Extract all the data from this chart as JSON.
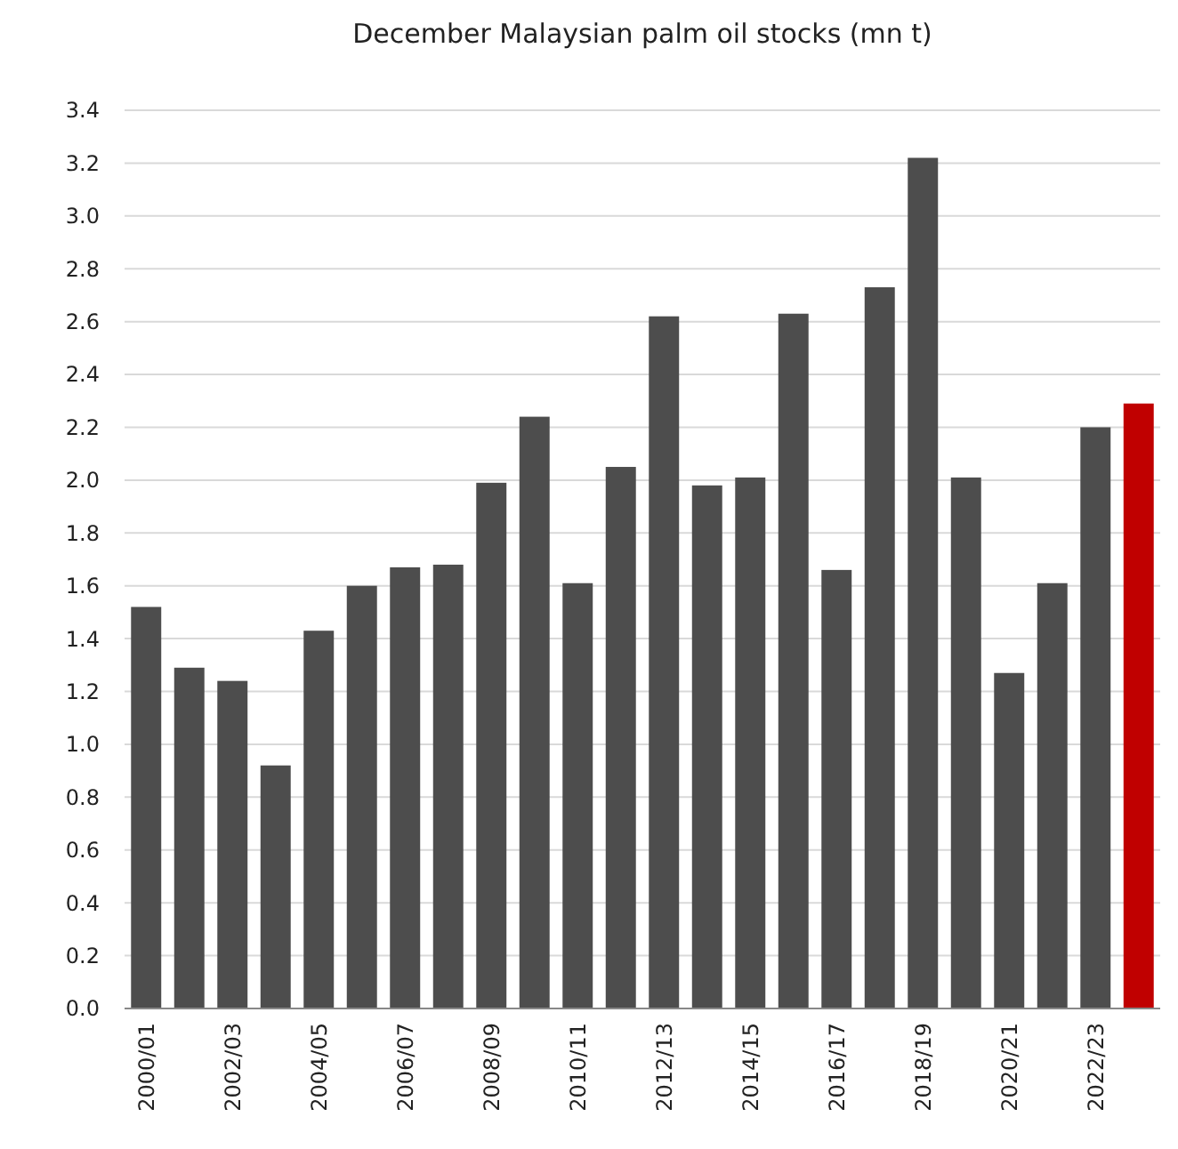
{
  "chart_data": {
    "type": "bar",
    "title": "December Malaysian palm oil stocks (mn t)",
    "categories": [
      "2000/01",
      null,
      "2002/03",
      null,
      "2004/05",
      null,
      "2006/07",
      null,
      "2008/09",
      null,
      "2010/11",
      null,
      "2012/13",
      null,
      "2014/15",
      null,
      "2016/17",
      null,
      "2018/19",
      null,
      "2020/21",
      null,
      "2022/23",
      null
    ],
    "values": [
      1.52,
      1.29,
      1.24,
      0.92,
      1.43,
      1.6,
      1.67,
      1.68,
      1.99,
      2.24,
      1.61,
      2.05,
      2.62,
      1.98,
      2.01,
      2.63,
      1.66,
      2.73,
      3.22,
      2.01,
      1.27,
      1.61,
      2.2,
      2.29
    ],
    "colors": [
      "#4d4d4d",
      "#4d4d4d",
      "#4d4d4d",
      "#4d4d4d",
      "#4d4d4d",
      "#4d4d4d",
      "#4d4d4d",
      "#4d4d4d",
      "#4d4d4d",
      "#4d4d4d",
      "#4d4d4d",
      "#4d4d4d",
      "#4d4d4d",
      "#4d4d4d",
      "#4d4d4d",
      "#4d4d4d",
      "#4d4d4d",
      "#4d4d4d",
      "#4d4d4d",
      "#4d4d4d",
      "#4d4d4d",
      "#4d4d4d",
      "#4d4d4d",
      "#c00000"
    ],
    "ylim": [
      0,
      3.4
    ],
    "yticks": [
      {
        "value": 0,
        "label": "0.0"
      },
      0.2,
      0.4,
      0.6,
      0.8,
      {
        "value": 1,
        "label": "1.0"
      },
      1.2,
      1.4,
      1.6,
      1.8,
      {
        "value": 2,
        "label": "2.0"
      },
      2.2,
      2.4,
      2.6,
      2.8,
      {
        "value": 3,
        "label": "3.0"
      },
      3.2,
      3.4
    ],
    "grid": "y"
  }
}
